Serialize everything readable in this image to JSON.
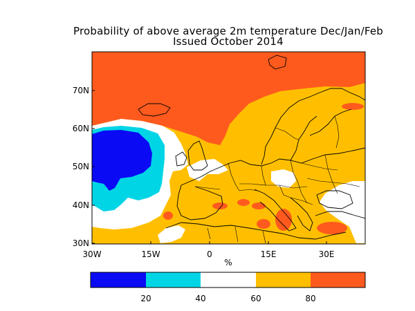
{
  "title": {
    "line1": "Probability of above average 2m temperature Dec/Jan/Feb",
    "line2": "Issued October 2014"
  },
  "map": {
    "lon_range": [
      -30,
      40
    ],
    "lat_range": [
      29,
      80
    ],
    "x_ticks": [
      "30W",
      "15W",
      "0",
      "15E",
      "30E"
    ],
    "y_ticks": [
      "30N",
      "40N",
      "50N",
      "60N",
      "70N"
    ],
    "x_unit_label": "%"
  },
  "colorbar": {
    "bins": [
      {
        "range": "0-20",
        "color": "#0a0af5"
      },
      {
        "range": "20-40",
        "color": "#00d5e6"
      },
      {
        "range": "40-60",
        "color": "#ffffff"
      },
      {
        "range": "60-80",
        "color": "#ffbf00"
      },
      {
        "range": "80-100",
        "color": "#ff5a1e"
      }
    ],
    "tick_labels": [
      "20",
      "40",
      "60",
      "80"
    ]
  }
}
